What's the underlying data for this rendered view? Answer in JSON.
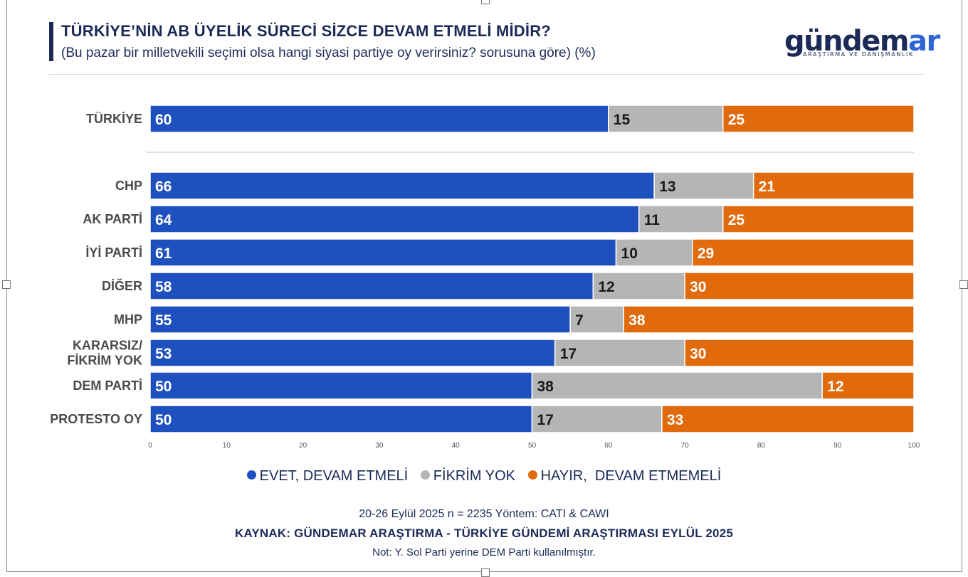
{
  "header": {
    "title": "TÜRKİYE’NİN AB ÜYELİK SÜRECİ SİZCE DEVAM ETMELİ MİDİR?",
    "subtitle": "(Bu pazar bir milletvekili seçimi olsa hangi siyasi partiye oy verirsiniz? sorusuna göre) (%)"
  },
  "logo": {
    "word_main": "gündem",
    "word_accent": "ar",
    "tagline": "ARAŞTIRMA VE DANIŞMANLIK"
  },
  "colors": {
    "navy": "#1b2a57",
    "evet": "#1f50c0",
    "fikrim_yok": "#b5b5b5",
    "hayir": "#e06a0c"
  },
  "chart_data": {
    "type": "bar",
    "orientation": "horizontal",
    "stacked": true,
    "categories": [
      "TÜRKİYE",
      "CHP",
      "AK PARTİ",
      "İYİ PARTİ",
      "DİĞER",
      "MHP",
      "KARARSIZ/\nFİKRİM YOK",
      "DEM PARTİ",
      "PROTESTO OY"
    ],
    "series": [
      {
        "name": "EVET, DEVAM ETMELİ",
        "values": [
          60,
          66,
          64,
          61,
          58,
          55,
          53,
          50,
          50
        ]
      },
      {
        "name": "FİKRİM YOK",
        "values": [
          15,
          13,
          11,
          10,
          12,
          7,
          17,
          38,
          17
        ]
      },
      {
        "name": "HAYIR,  DEVAM ETMEMELİ",
        "values": [
          25,
          21,
          25,
          29,
          30,
          38,
          30,
          12,
          33
        ]
      }
    ],
    "xlim": [
      0,
      100
    ],
    "xticks": [
      0,
      10,
      20,
      30,
      40,
      50,
      60,
      70,
      80,
      90,
      100
    ],
    "legend_position": "bottom",
    "separator_after_first": true
  },
  "footer": {
    "line1": "20-26 Eylül 2025 n = 2235 Yöntem: CATI & CAWI",
    "line2": "KAYNAK: GÜNDEMAR ARAŞTIRMA - TÜRKİYE GÜNDEMİ ARAŞTIRMASI EYLÜL 2025",
    "line3": "Not: Y. Sol Parti yerine DEM Parti kullanılmıştır."
  }
}
